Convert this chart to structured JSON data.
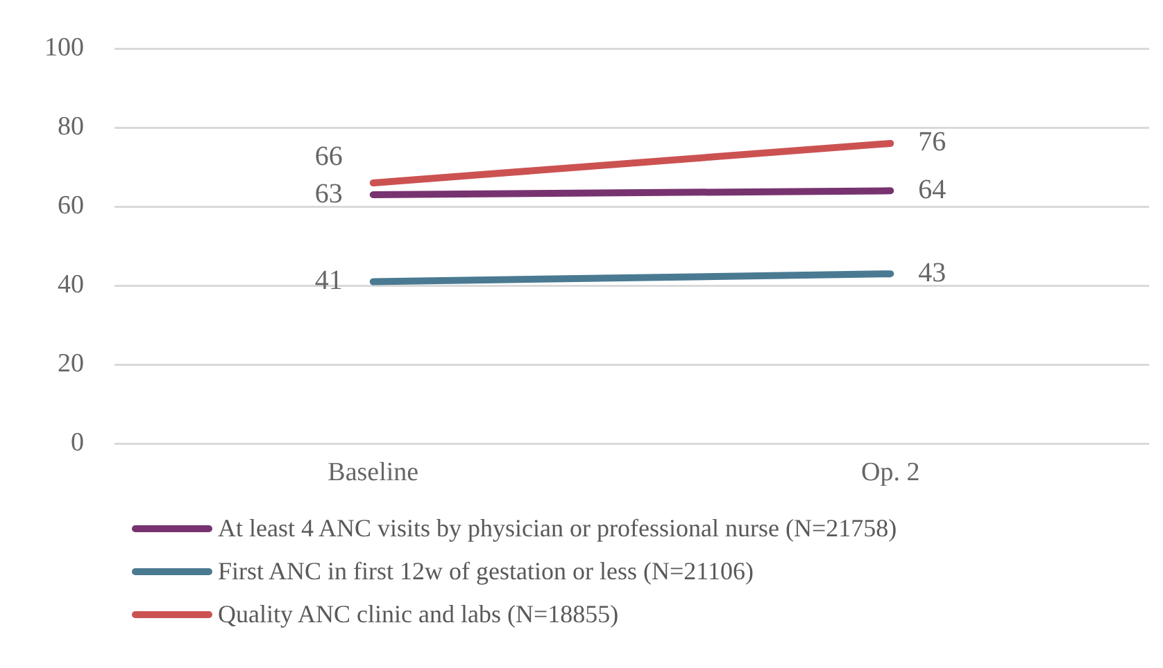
{
  "chart_data": {
    "type": "line",
    "categories": [
      "Baseline",
      "Op. 2"
    ],
    "series": [
      {
        "name": "At least 4 ANC visits by physician or professional nurse (N=21758)",
        "color": "#77336f",
        "values": [
          63,
          64
        ]
      },
      {
        "name": "First ANC in first 12w of gestation or less (N=21106)",
        "color": "#4a7a91",
        "values": [
          41,
          43
        ]
      },
      {
        "name": "Quality ANC clinic and labs (N=18855)",
        "color": "#cc5252",
        "values": [
          66,
          76
        ]
      }
    ],
    "ylim": [
      0,
      100
    ],
    "yticks": [
      0,
      20,
      40,
      60,
      80,
      100
    ],
    "grid": "y",
    "legend": "bottom",
    "data_labels": true,
    "marker": "none",
    "line_style": "solid"
  }
}
